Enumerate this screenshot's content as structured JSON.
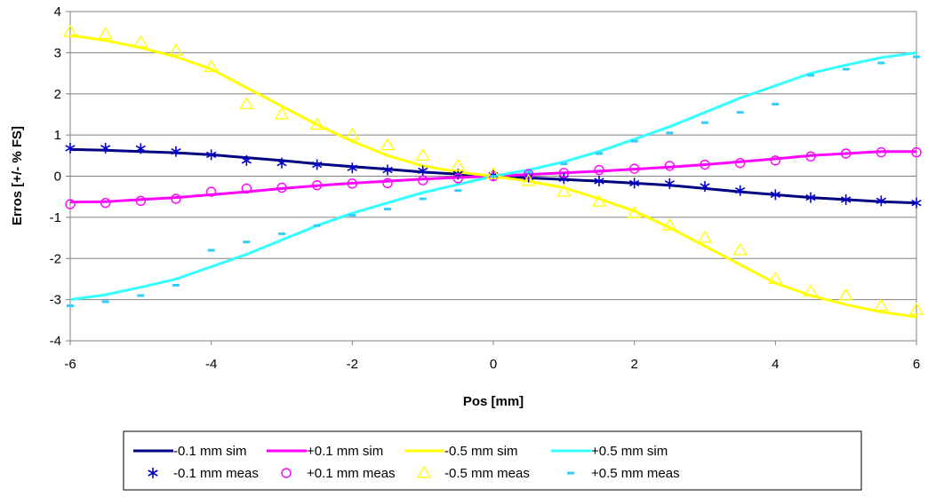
{
  "chart_data": {
    "type": "line",
    "xlabel": "Pos [mm]",
    "ylabel": "Erros [+/- % FS]",
    "xlim": [
      -6,
      6
    ],
    "ylim": [
      -4,
      4
    ],
    "xticks": [
      -6,
      -4,
      -2,
      0,
      2,
      4,
      6
    ],
    "yticks": [
      -4,
      -3,
      -2,
      -1,
      0,
      1,
      2,
      3,
      4
    ],
    "x_tick_labels": [
      "-6",
      "-4",
      "-2",
      "0",
      "2",
      "4",
      "6"
    ],
    "y_tick_labels": [
      "-4",
      "-3",
      "-2",
      "-1",
      "0",
      "1",
      "2",
      "3",
      "4"
    ],
    "grid": "horizontal",
    "legend_position": "bottom",
    "x": [
      -6,
      -5.5,
      -5,
      -4.5,
      -4,
      -3.5,
      -3,
      -2.5,
      -2,
      -1.5,
      -1,
      -0.5,
      0,
      0.5,
      1,
      1.5,
      2,
      2.5,
      3,
      3.5,
      4,
      4.5,
      5,
      5.5,
      6
    ],
    "series": [
      {
        "name": "-0.1 mm sim",
        "kind": "line",
        "color": "#000080",
        "values": [
          0.65,
          0.63,
          0.6,
          0.57,
          0.52,
          0.45,
          0.38,
          0.3,
          0.23,
          0.17,
          0.1,
          0.05,
          0,
          -0.04,
          -0.08,
          -0.12,
          -0.17,
          -0.22,
          -0.3,
          -0.38,
          -0.45,
          -0.52,
          -0.57,
          -0.62,
          -0.65
        ]
      },
      {
        "name": "+0.1 mm sim",
        "kind": "line",
        "color": "#FF00FF",
        "values": [
          -0.63,
          -0.62,
          -0.57,
          -0.52,
          -0.45,
          -0.38,
          -0.3,
          -0.23,
          -0.17,
          -0.12,
          -0.07,
          -0.03,
          0,
          0.04,
          0.08,
          0.12,
          0.17,
          0.22,
          0.28,
          0.35,
          0.42,
          0.5,
          0.55,
          0.6,
          0.6
        ]
      },
      {
        "name": "-0.5 mm sim",
        "kind": "line",
        "color": "#FFFF00",
        "values": [
          3.42,
          3.3,
          3.12,
          2.9,
          2.6,
          2.15,
          1.7,
          1.25,
          0.85,
          0.5,
          0.25,
          0.1,
          0,
          -0.12,
          -0.28,
          -0.55,
          -0.85,
          -1.25,
          -1.7,
          -2.15,
          -2.6,
          -2.9,
          -3.12,
          -3.3,
          -3.42
        ]
      },
      {
        "name": "+0.5 mm sim",
        "kind": "line",
        "color": "#33FFFF",
        "values": [
          -3.0,
          -2.88,
          -2.7,
          -2.5,
          -2.2,
          -1.9,
          -1.55,
          -1.2,
          -0.9,
          -0.65,
          -0.4,
          -0.2,
          0,
          0.15,
          0.35,
          0.6,
          0.9,
          1.2,
          1.55,
          1.9,
          2.2,
          2.5,
          2.7,
          2.88,
          3.0
        ]
      },
      {
        "name": "-0.1 mm meas",
        "kind": "marker",
        "marker": "asterisk",
        "color": "#0000CC",
        "values": [
          0.68,
          0.68,
          0.67,
          0.6,
          0.52,
          0.38,
          0.32,
          0.28,
          0.2,
          0.15,
          0.13,
          0.05,
          0.02,
          -0.02,
          -0.06,
          -0.12,
          -0.17,
          -0.18,
          -0.25,
          -0.35,
          -0.45,
          -0.52,
          -0.57,
          -0.6,
          -0.65
        ]
      },
      {
        "name": "+0.1 mm  meas",
        "kind": "marker",
        "marker": "circle",
        "color": "#FF00FF",
        "values": [
          -0.68,
          -0.65,
          -0.6,
          -0.55,
          -0.38,
          -0.3,
          -0.28,
          -0.22,
          -0.18,
          -0.17,
          -0.1,
          -0.05,
          0,
          0.05,
          0.08,
          0.15,
          0.18,
          0.25,
          0.28,
          0.32,
          0.38,
          0.48,
          0.55,
          0.58,
          0.58
        ]
      },
      {
        "name": "-0.5 mm  meas",
        "kind": "marker",
        "marker": "triangle",
        "color": "#FFFF00",
        "values": [
          3.5,
          3.45,
          3.25,
          3.05,
          2.65,
          1.75,
          1.5,
          1.25,
          1.0,
          0.75,
          0.5,
          0.25,
          0.05,
          -0.12,
          -0.38,
          -0.62,
          -0.9,
          -1.2,
          -1.5,
          -1.8,
          -2.5,
          -2.8,
          -2.9,
          -3.15,
          -3.25
        ]
      },
      {
        "name": "+0.5 mm  meas",
        "kind": "marker",
        "marker": "dash",
        "color": "#33CCFF",
        "values": [
          -3.15,
          -3.05,
          -2.9,
          -2.65,
          -1.8,
          -1.6,
          -1.4,
          -1.2,
          -0.95,
          -0.8,
          -0.55,
          -0.35,
          0,
          0.1,
          0.3,
          0.55,
          0.85,
          1.05,
          1.3,
          1.55,
          1.75,
          2.45,
          2.6,
          2.75,
          2.9
        ]
      }
    ]
  }
}
